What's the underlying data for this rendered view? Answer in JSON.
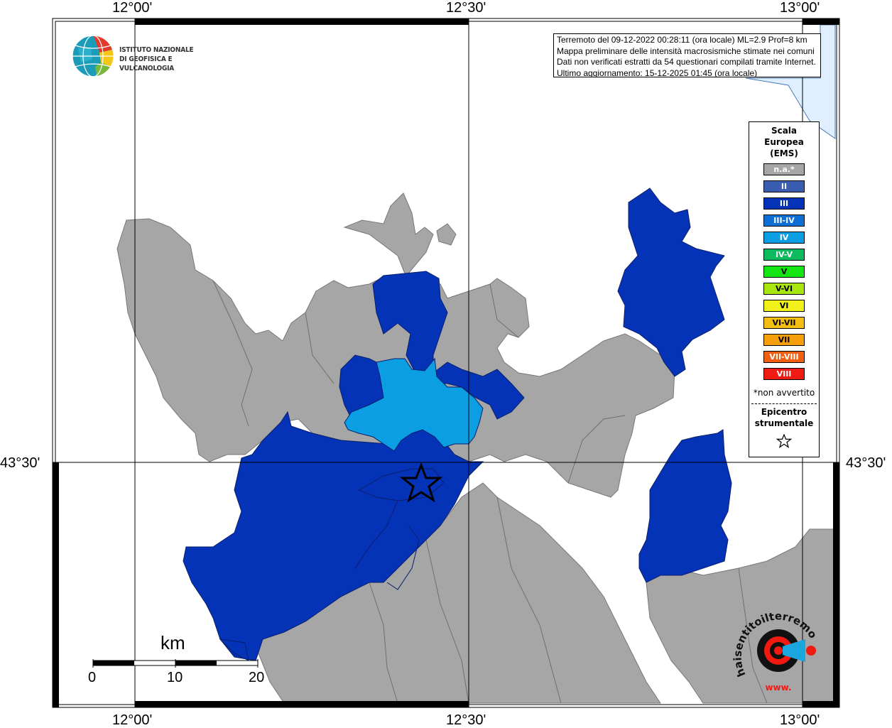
{
  "map": {
    "graticule": {
      "lon_top": [
        "12°00'",
        "12°30'",
        "13°00'"
      ],
      "lon_bottom": [
        "12°00'",
        "12°30'",
        "13°00'"
      ],
      "lat_left": "43°30'",
      "lat_right": "43°30'"
    },
    "colors": {
      "background": "#ffffff",
      "na": "#a6a6a6",
      "sea": "#e0efff",
      "III": "#0533b8",
      "IV": "#0b9ee3"
    }
  },
  "info": {
    "line1": "Terremoto del 09-12-2022 00:28:11 (ora locale) ML=2.9 Prof=8 km",
    "line2": "Mappa preliminare delle intensità macrosismiche stimate nei comuni",
    "line3": "Dati non verificati estratti da 54 questionari compilati tramite Internet.",
    "line4": "Ultimo aggiornamento: 15-12-2025 01:45 (ora locale)"
  },
  "logo": {
    "line1": "ISTITUTO NAZIONALE",
    "line2": "DI GEOFISICA E VULCANOLOGIA"
  },
  "legend": {
    "title1": "Scala",
    "title2": "Europea",
    "title3": "(EMS)",
    "classes": [
      {
        "label": "n.a.*",
        "color": "#a6a6a6"
      },
      {
        "label": "II",
        "color": "#3a5db0"
      },
      {
        "label": "III",
        "color": "#0533b8"
      },
      {
        "label": "III-IV",
        "color": "#0b6fd6"
      },
      {
        "label": "IV",
        "color": "#0b9ee3"
      },
      {
        "label": "IV-V",
        "color": "#0dba5e"
      },
      {
        "label": "V",
        "color": "#14e614"
      },
      {
        "label": "V-VI",
        "color": "#a8e60d"
      },
      {
        "label": "VI",
        "color": "#f2f21a"
      },
      {
        "label": "VI-VII",
        "color": "#f5bf12"
      },
      {
        "label": "VII",
        "color": "#f5a00a"
      },
      {
        "label": "VII-VIII",
        "color": "#f06010"
      },
      {
        "label": "VIII",
        "color": "#ef1a12"
      }
    ],
    "note": "*non avvertito",
    "epicentro1": "Epicentro",
    "epicentro2": "strumentale"
  },
  "scalebar": {
    "unit": "km",
    "ticks": [
      "0",
      "10",
      "20"
    ]
  },
  "hst_logo": {
    "text": "haisentitoilterremoto.it",
    "url": "www."
  }
}
